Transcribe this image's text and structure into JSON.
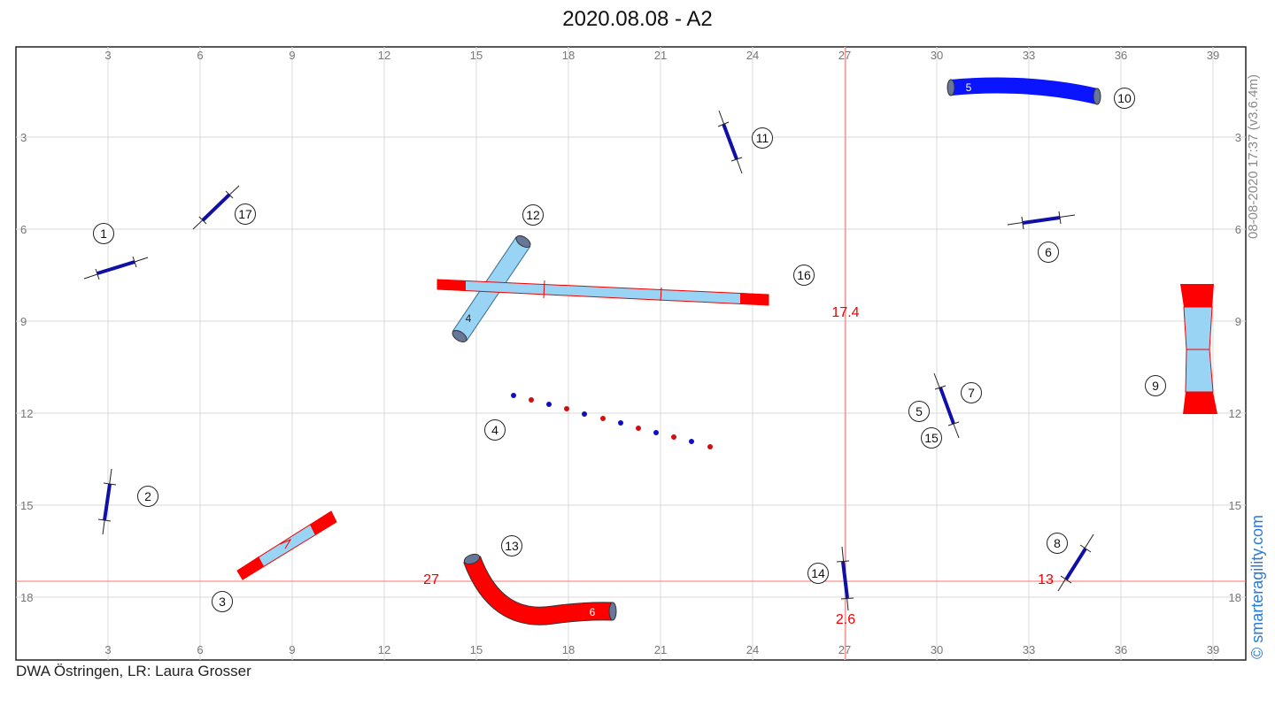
{
  "header": {
    "title": "2020.08.08 - A2"
  },
  "footer": {
    "text": "DWA Östringen,  LR: Laura Grosser"
  },
  "stamp": {
    "text": "08-08-2020 17:37  (v3.6.4m)"
  },
  "copyright": {
    "text": "© smarteragility.com"
  },
  "grid": {
    "x_ticks": [
      "3",
      "6",
      "9",
      "12",
      "15",
      "18",
      "21",
      "24",
      "27",
      "30",
      "33",
      "36",
      "39"
    ],
    "y_ticks": [
      "3",
      "6",
      "9",
      "12",
      "15",
      "18"
    ]
  },
  "colors": {
    "jump_bar": "#1010a8",
    "tunnel_blue": "#0a14ff",
    "tunnel_red": "#ff0000",
    "contact_red": "#ff0000",
    "board_light": "#9ad4f5",
    "grid": "#d5d5d5",
    "measure": "#ff4444",
    "copyright": "#2a7bd6"
  },
  "obstacles": {
    "tunnel_5_label": "5",
    "tunnel_6_label": "6",
    "tunnel_4_label": "4",
    "weave_label": "4"
  },
  "numbers": [
    {
      "name": "number-1",
      "text": "1"
    },
    {
      "name": "number-2",
      "text": "2"
    },
    {
      "name": "number-3",
      "text": "3"
    },
    {
      "name": "number-4",
      "text": "4"
    },
    {
      "name": "number-5",
      "text": "5"
    },
    {
      "name": "number-6",
      "text": "6"
    },
    {
      "name": "number-7",
      "text": "7"
    },
    {
      "name": "number-8",
      "text": "8"
    },
    {
      "name": "number-9",
      "text": "9"
    },
    {
      "name": "number-10",
      "text": "10"
    },
    {
      "name": "number-11",
      "text": "11"
    },
    {
      "name": "number-12",
      "text": "12"
    },
    {
      "name": "number-13",
      "text": "13"
    },
    {
      "name": "number-14",
      "text": "14"
    },
    {
      "name": "number-15",
      "text": "15"
    },
    {
      "name": "number-16",
      "text": "16"
    },
    {
      "name": "number-17",
      "text": "17"
    }
  ],
  "measurements": {
    "v_top": "17.4",
    "v_bottom": "2.6",
    "h_left": "27",
    "h_right": "13"
  }
}
